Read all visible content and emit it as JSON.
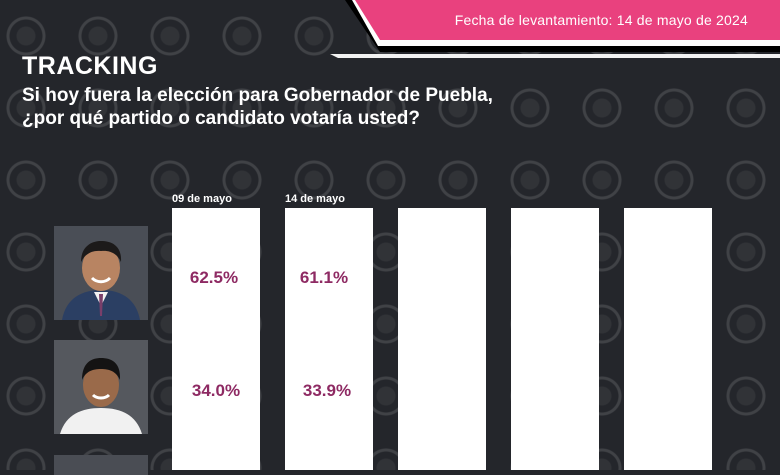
{
  "header": {
    "survey_date": "Fecha de levantamiento: 14 de mayo de 2024"
  },
  "title": "TRACKING",
  "question_line1": "Si hoy fuera la elección para Gobernador de Puebla,",
  "question_line2": "¿por qué partido o candidato votaría usted?",
  "colors": {
    "accent_pink": "#e9417e",
    "value_color": "#8e2a63",
    "background": "#24262b"
  },
  "chart_data": {
    "type": "table",
    "title": "TRACKING",
    "columns": [
      "09 de mayo",
      "14 de mayo",
      "",
      "",
      ""
    ],
    "rows": [
      {
        "values": [
          "62.5%",
          "61.1%"
        ]
      },
      {
        "values": [
          "34.0%",
          "33.9%"
        ]
      }
    ]
  }
}
